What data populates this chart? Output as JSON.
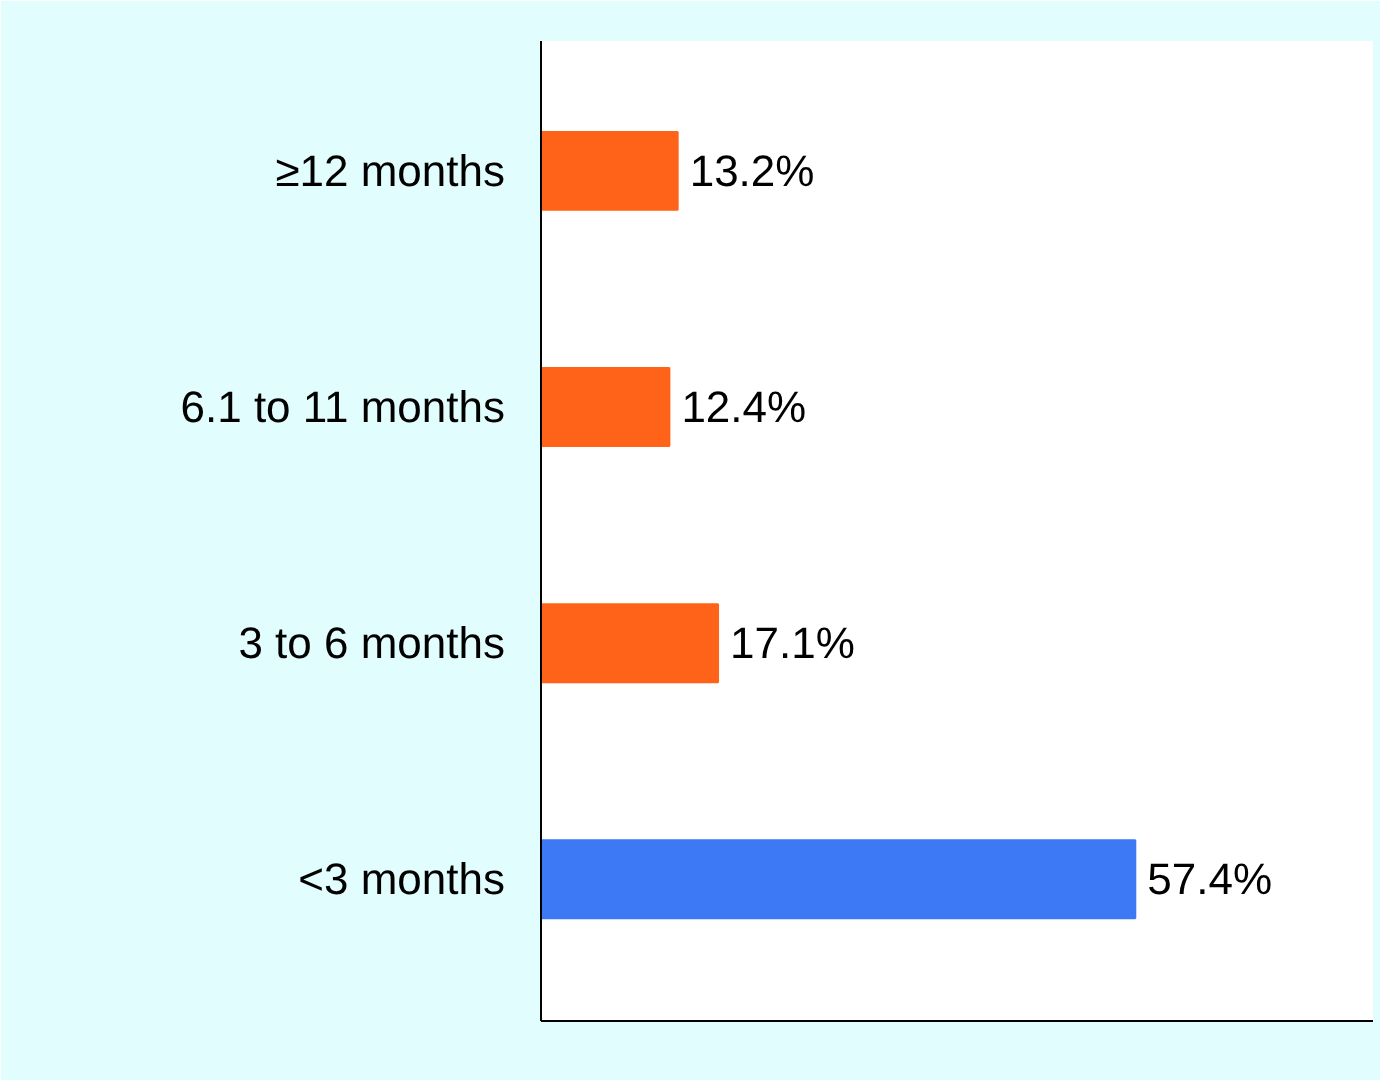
{
  "chart_data": {
    "type": "bar",
    "orientation": "horizontal",
    "categories": [
      "≥12 months",
      "6.1 to 11 months",
      "3 to 6 months",
      "<3 months"
    ],
    "values": [
      13.2,
      12.4,
      17.1,
      57.4
    ],
    "colors": [
      "#ff6319",
      "#ff6319",
      "#ff6319",
      "#3d78f5"
    ],
    "value_labels": [
      "13.2%",
      "12.4%",
      "17.1%",
      "57.4%"
    ],
    "grid": false
  }
}
